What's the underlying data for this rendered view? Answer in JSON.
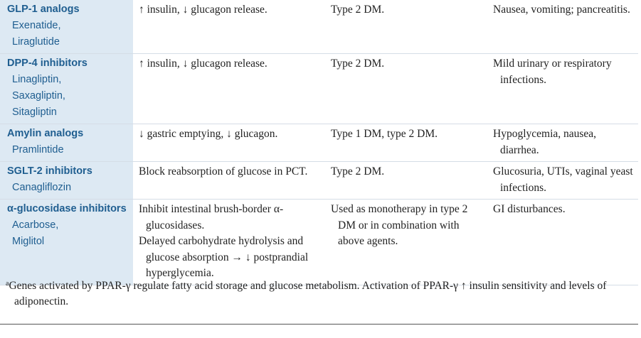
{
  "rows": [
    {
      "drug_class": "GLP-1 analogs",
      "examples": [
        "Exenatide,",
        "Liraglutide"
      ],
      "mechanism": [
        "↑ insulin, ↓ glucagon release."
      ],
      "use": "Type 2 DM.",
      "toxicity": "Nausea, vomiting; pancreatitis."
    },
    {
      "drug_class": "DPP-4 inhibitors",
      "examples": [
        "Linagliptin,",
        "Saxagliptin,",
        "Sitagliptin"
      ],
      "mechanism": [
        "↑ insulin, ↓ glucagon release."
      ],
      "use": "Type 2 DM.",
      "toxicity": "Mild urinary or respiratory infections."
    },
    {
      "drug_class": "Amylin analogs",
      "examples": [
        "Pramlintide"
      ],
      "mechanism": [
        "↓ gastric emptying, ↓ glucagon."
      ],
      "use": "Type 1 DM, type 2 DM.",
      "toxicity": "Hypoglycemia, nausea, diarrhea."
    },
    {
      "drug_class": "SGLT-2 inhibitors",
      "examples": [
        "Canagliflozin"
      ],
      "mechanism": [
        "Block reabsorption of glucose in PCT."
      ],
      "use": "Type 2 DM.",
      "toxicity": "Glucosuria, UTIs, vaginal yeast infections."
    },
    {
      "drug_class": "α-glucosidase inhibitors",
      "examples": [
        "Acarbose,",
        "Miglitol"
      ],
      "mechanism": [
        "Inhibit intestinal brush-border α-glucosidases.",
        "Delayed carbohydrate hydrolysis and glucose absorption → ↓ postprandial hyperglycemia."
      ],
      "use": "Used as monotherapy in type 2 DM or in combination with above agents.",
      "toxicity": "GI disturbances."
    }
  ],
  "footnote": {
    "marker": "a",
    "text": "Genes activated by PPAR-γ regulate fatty acid storage and glucose metabolism. Activation of PPAR-γ ↑ insulin sensitivity and levels of adiponectin."
  }
}
